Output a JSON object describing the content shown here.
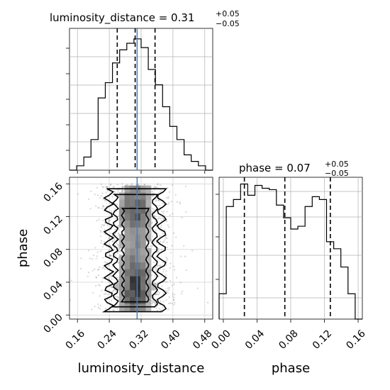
{
  "chart_data": [
    {
      "type": "histogram",
      "panel": "luminosity_distance-1d",
      "title": {
        "text": "luminosity_distance = 0.31",
        "upper": "+0.05",
        "lower": "−0.05"
      },
      "xlim": [
        0.14,
        0.5
      ],
      "bin_edges": [
        0.14,
        0.158,
        0.176,
        0.194,
        0.212,
        0.23,
        0.248,
        0.266,
        0.284,
        0.302,
        0.32,
        0.338,
        0.356,
        0.374,
        0.392,
        0.41,
        0.428,
        0.446,
        0.464,
        0.482,
        0.5
      ],
      "counts": [
        0,
        2,
        6,
        14,
        33,
        40,
        49,
        55,
        58,
        60,
        56,
        46,
        39,
        29,
        20,
        14,
        7,
        4,
        2,
        0
      ],
      "quantiles": [
        0.26,
        0.305,
        0.355
      ],
      "truth": 0.31,
      "truth_color": "#4a7fb5"
    },
    {
      "type": "scatter-density",
      "panel": "luminosity_distance-phase-2d",
      "xlabel": "luminosity_distance",
      "ylabel": "phase",
      "xlim": [
        0.14,
        0.5
      ],
      "ylim": [
        -0.005,
        0.168
      ],
      "xticks": [
        "0.16",
        "0.24",
        "0.32",
        "0.40",
        "0.48"
      ],
      "yticks": [
        "0.00",
        "0.04",
        "0.08",
        "0.12",
        "0.16"
      ],
      "contour_levels": 4,
      "truth_x": 0.31,
      "truth_color": "#4a7fb5"
    },
    {
      "type": "histogram",
      "panel": "phase-1d",
      "title": {
        "text": "phase = 0.07",
        "upper": "+0.05",
        "lower": "−0.05"
      },
      "xlabel": "phase",
      "xlim": [
        -0.005,
        0.165
      ],
      "xticks": [
        "0.00",
        "0.04",
        "0.08",
        "0.12",
        "0.16"
      ],
      "bin_edges": [
        -0.005,
        0.0035,
        0.012,
        0.0205,
        0.029,
        0.0375,
        0.046,
        0.0545,
        0.063,
        0.0715,
        0.08,
        0.0885,
        0.097,
        0.1055,
        0.114,
        0.1225,
        0.131,
        0.1395,
        0.148,
        0.1565,
        0.165
      ],
      "counts": [
        18,
        80,
        85,
        96,
        88,
        95,
        93,
        92,
        81,
        72,
        64,
        66,
        80,
        87,
        85,
        55,
        50,
        37,
        18,
        0
      ],
      "quantiles": [
        0.025,
        0.073,
        0.127
      ]
    }
  ]
}
